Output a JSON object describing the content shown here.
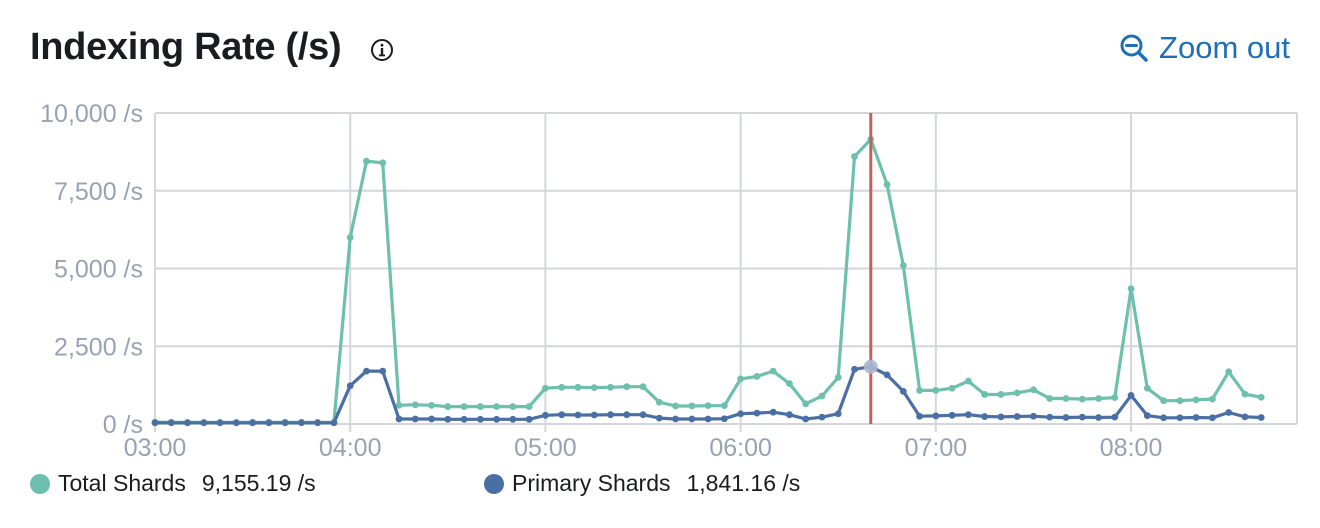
{
  "header": {
    "title": "Indexing Rate (/s)",
    "info_icon": "info-circle-icon",
    "zoom_icon": "magnifier-minus-icon",
    "zoom_label": "Zoom out"
  },
  "colors": {
    "total": "#6dbfae",
    "primary": "#4a6fa5",
    "cursor": "#c0635a",
    "grid": "#d3d6da",
    "axis_text": "#98a2b3",
    "tick_text": "#69707d"
  },
  "legend": {
    "items": [
      {
        "name": "Total Shards",
        "value": "9,155.19 /s"
      },
      {
        "name": "Primary Shards",
        "value": "1,841.16 /s"
      }
    ]
  },
  "chart_data": {
    "type": "line",
    "title": "Indexing Rate (/s)",
    "x_start": "03:00",
    "x_step_minutes": 5,
    "x_ticks": [
      "03:00",
      "04:00",
      "05:00",
      "06:00",
      "07:00",
      "08:00"
    ],
    "y_ticks": [
      "0 /s",
      "2,500 /s",
      "5,000 /s",
      "7,500 /s",
      "10,000 /s"
    ],
    "ylim": [
      0,
      10000
    ],
    "xlim": [
      "03:00",
      "08:45"
    ],
    "grid": true,
    "legend_position": "bottom",
    "cursor_time": "06:40",
    "series": [
      {
        "name": "Total Shards",
        "values": [
          60,
          55,
          50,
          50,
          50,
          50,
          55,
          55,
          55,
          55,
          50,
          50,
          6000,
          8450,
          8400,
          600,
          620,
          600,
          560,
          560,
          560,
          560,
          560,
          560,
          1150,
          1180,
          1180,
          1170,
          1180,
          1200,
          1200,
          700,
          580,
          580,
          590,
          590,
          1450,
          1530,
          1700,
          1300,
          650,
          900,
          1500,
          8600,
          9155.19,
          7700,
          5100,
          1080,
          1080,
          1150,
          1380,
          950,
          950,
          1000,
          1100,
          820,
          820,
          800,
          820,
          850,
          4350,
          1150,
          750,
          750,
          780,
          800,
          1680,
          960,
          860
        ]
      },
      {
        "name": "Primary Shards",
        "values": [
          40,
          40,
          40,
          40,
          40,
          40,
          40,
          40,
          40,
          40,
          40,
          40,
          1230,
          1700,
          1700,
          160,
          160,
          160,
          150,
          150,
          150,
          150,
          150,
          150,
          280,
          300,
          290,
          290,
          300,
          300,
          300,
          190,
          160,
          160,
          160,
          170,
          330,
          350,
          380,
          300,
          160,
          220,
          330,
          1760,
          1841.16,
          1580,
          1050,
          250,
          260,
          280,
          300,
          240,
          230,
          240,
          250,
          220,
          210,
          220,
          210,
          220,
          920,
          270,
          200,
          200,
          210,
          200,
          370,
          230,
          210
        ]
      }
    ]
  }
}
